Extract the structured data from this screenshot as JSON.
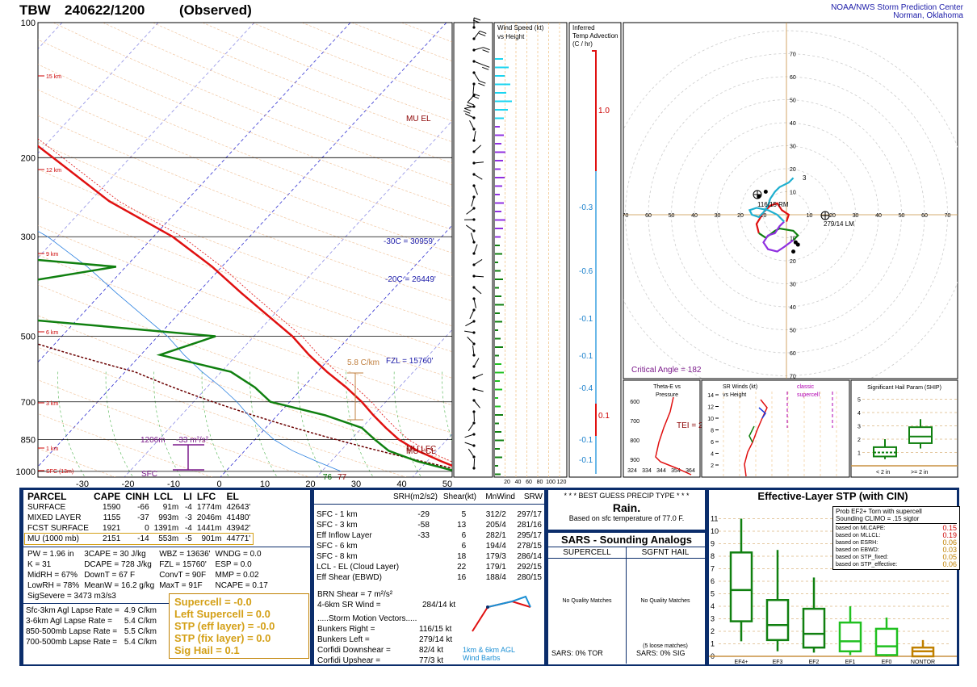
{
  "header": {
    "station": "TBW",
    "datetime": "240622/1200",
    "mode": "(Observed)",
    "org1": "NOAA/NWS Storm Prediction Center",
    "org2": "Norman, Oklahoma"
  },
  "skewt": {
    "pressure_labels": [
      "100",
      "200",
      "300",
      "500",
      "700",
      "850",
      "1000"
    ],
    "temp_labels": [
      "-30",
      "-20",
      "-10",
      "0",
      "10",
      "20",
      "30",
      "40",
      "50"
    ],
    "height_labels": [
      "15 km",
      "12 km",
      "9 km",
      "6 km",
      "3 km",
      "1 km",
      "SFC (13m)"
    ],
    "annotations": {
      "mu_el": "MU EL",
      "m30": "-30C = 30959'",
      "m20": "-20C = 26449'",
      "fzl": "FZL = 15760'",
      "lapse": "5.8 C/km",
      "mulfc": "MU LFC",
      "mulcl": "MU LCL",
      "sfc_t": "77",
      "sfc_td": "76",
      "cin_h": "1206m",
      "cin_v": "-33 m²/s²",
      "sfc": "SFC"
    }
  },
  "wind_profile": {
    "title1": "Wind Speed (kt)",
    "title2": "vs Height",
    "ticks": [
      "20",
      "40",
      "60",
      "80",
      "100",
      "120"
    ]
  },
  "temp_adv": {
    "title1": "Inferred",
    "title2": "Temp Advection",
    "title3": "(C / hr)",
    "values": [
      "1.0",
      "-0.3",
      "-0.6",
      "-0.1",
      "-0.1",
      "-0.4",
      "0.1",
      "-0.1",
      "-0.1"
    ]
  },
  "hodograph": {
    "rings": [
      "10",
      "20",
      "30",
      "40",
      "50",
      "60",
      "70"
    ],
    "rm": "116/15 RM",
    "lm": "279/14 LM",
    "critical": "Critical Angle = 182",
    "pts": [
      "3"
    ]
  },
  "theta": {
    "title1": "Theta-E vs",
    "title2": "Pressure",
    "tei": "TEI = 28",
    "plabels": [
      "600",
      "700",
      "800",
      "900"
    ],
    "tlabels": [
      "324",
      "334",
      "344",
      "354",
      "364"
    ]
  },
  "srwinds": {
    "title1": "SR Winds (kt)",
    "title2": "vs Height",
    "classic1": "classic",
    "classic2": "supercell",
    "hlabels": [
      "14",
      "12",
      "10",
      "8",
      "6",
      "4",
      "2"
    ]
  },
  "ship": {
    "title": "Significant Hail Param (SHIP)",
    "ticks": [
      "1",
      "2",
      "3",
      "4",
      "5"
    ],
    "lt": "< 2 in",
    "ge": ">= 2 in"
  },
  "params": {
    "header": [
      "PARCEL",
      "CAPE",
      "CINH",
      "LCL",
      "LI",
      "LFC",
      "EL"
    ],
    "rows": [
      [
        "SURFACE",
        "1590",
        "-66",
        "91m",
        "-4",
        "1774m",
        "42643'"
      ],
      [
        "MIXED LAYER",
        "1155",
        "-37",
        "993m",
        "-3",
        "2046m",
        "41480'"
      ],
      [
        "FCST SURFACE",
        "1921",
        "0",
        "1391m",
        "-4",
        "1441m",
        "43942'"
      ],
      [
        "MU    (1000 mb)",
        "2151",
        "-14",
        "553m",
        "-5",
        "901m",
        "44771'"
      ]
    ],
    "misc": [
      [
        "PW = 1.96 in",
        "3CAPE = 30 J/kg",
        "WBZ = 13636'",
        "WNDG = 0.0"
      ],
      [
        "K = 31",
        "DCAPE = 728 J/kg",
        "FZL = 15760'",
        "ESP = 0.0"
      ],
      [
        "MidRH = 67%",
        "DownT = 67 F",
        "ConvT = 90F",
        "MMP = 0.02"
      ],
      [
        "LowRH = 78%",
        "MeanW = 16.2 g/kg",
        "MaxT = 91F",
        "NCAPE = 0.17"
      ]
    ],
    "sigsevere": "SigSevere = 3473 m3/s3",
    "lapse": [
      [
        "Sfc-3km Agl Lapse Rate =",
        "4.9 C/km"
      ],
      [
        "3-6km Agl Lapse Rate =",
        "5.4 C/km"
      ],
      [
        "850-500mb Lapse Rate =",
        "5.5 C/km"
      ],
      [
        "700-500mb Lapse Rate =",
        "5.4 C/km"
      ]
    ],
    "composite": [
      "Supercell = -0.0",
      "Left Supercell = 0.0",
      "STP (eff layer) = -0.0",
      "STP (fix layer) = 0.0",
      "Sig Hail = 0.1"
    ]
  },
  "kinematics": {
    "header": [
      "SRH(m2/s2)",
      "Shear(kt)",
      "MnWind",
      "SRW"
    ],
    "rows": [
      [
        "SFC - 1 km",
        "-29",
        "5",
        "312/2",
        "297/17"
      ],
      [
        "SFC - 3 km",
        "-58",
        "13",
        "205/4",
        "281/16"
      ],
      [
        "Eff Inflow Layer",
        "-33",
        "6",
        "282/1",
        "295/17"
      ],
      [
        "",
        "",
        "",
        "",
        ""
      ],
      [
        "SFC - 6 km",
        "",
        "6",
        "194/4",
        "278/15"
      ],
      [
        "SFC - 8 km",
        "",
        "18",
        "179/3",
        "286/14"
      ],
      [
        "LCL - EL (Cloud Layer)",
        "",
        "22",
        "179/1",
        "292/15"
      ],
      [
        "Eff Shear (EBWD)",
        "",
        "16",
        "188/4",
        "280/15"
      ]
    ],
    "brn": "BRN Shear =  7 m²/s²",
    "srwind": "4-6km SR Wind =",
    "srwind_val": "284/14 kt",
    "storm_title": ".....Storm Motion Vectors.....",
    "storm": [
      [
        "Bunkers Right =",
        "116/15 kt"
      ],
      [
        "Bunkers Left =",
        "279/14 kt"
      ],
      [
        "",
        ""
      ],
      [
        "Corfidi Downshear =",
        "82/4 kt"
      ],
      [
        "Corfidi Upshear =",
        "77/3 kt"
      ]
    ],
    "legend1": "1km & 6km AGL",
    "legend2": "Wind Barbs"
  },
  "precip": {
    "title": "* * * BEST GUESS PRECIP TYPE * * *",
    "type": "Rain.",
    "basis": "Based on sfc temperature of 77.0 F."
  },
  "sars": {
    "title": "SARS - Sounding Analogs",
    "col1": "SUPERCELL",
    "col2": "SGFNT HAIL",
    "nomatch1": "No Quality Matches",
    "nomatch2": "No Quality Matches",
    "loose": "(5 loose matches)",
    "tor": "SARS:  0% TOR",
    "sig": "SARS:  0% SIG"
  },
  "stp": {
    "title": "Effective-Layer STP (with CIN)",
    "prob_title1": "Prob EF2+ Torn with supercell",
    "prob_title2": "Sounding CLIMO = .15 sigtor",
    "probs": [
      [
        "based on MLCAPE:",
        "0.15"
      ],
      [
        "based on MLLCL:",
        "0.19"
      ],
      [
        "based on ESRH:",
        "0.06"
      ],
      [
        "based on EBWD:",
        "0.03"
      ],
      [
        "",
        ""
      ],
      [
        "based on STP_fixed:",
        "0.05"
      ],
      [
        "based on STP_effective:",
        "0.06"
      ]
    ],
    "yticks": [
      "0",
      "1",
      "2",
      "3",
      "4",
      "5",
      "6",
      "7",
      "8",
      "9",
      "10",
      "11"
    ],
    "cats": [
      "EF4+",
      "EF3",
      "EF2",
      "EF1",
      "EF0",
      "NONTOR"
    ]
  },
  "chart_data": {
    "type": "skew-t sounding",
    "temperature": [
      [
        1000,
        25
      ],
      [
        950,
        21.5
      ],
      [
        900,
        18
      ],
      [
        850,
        15
      ],
      [
        800,
        12.5
      ],
      [
        750,
        10
      ],
      [
        700,
        7.5
      ],
      [
        650,
        4.5
      ],
      [
        600,
        1
      ],
      [
        550,
        -2.5
      ],
      [
        500,
        -6
      ],
      [
        450,
        -10.5
      ],
      [
        400,
        -15.5
      ],
      [
        350,
        -21
      ],
      [
        300,
        -28
      ],
      [
        250,
        -38
      ],
      [
        200,
        -48
      ],
      [
        150,
        -61
      ],
      [
        100,
        -75
      ]
    ],
    "dewpoint": [
      [
        1000,
        24
      ],
      [
        950,
        19
      ],
      [
        900,
        15
      ],
      [
        850,
        12.5
      ],
      [
        800,
        10
      ],
      [
        750,
        5
      ],
      [
        700,
        -2
      ],
      [
        650,
        -5
      ],
      [
        600,
        -9
      ],
      [
        550,
        -18
      ],
      [
        500,
        -14
      ],
      [
        450,
        -40
      ],
      [
        400,
        -45
      ],
      [
        350,
        -31
      ],
      [
        300,
        -70
      ],
      [
        250,
        -58
      ],
      [
        200,
        -66
      ],
      [
        150,
        -71
      ],
      [
        100,
        -77
      ]
    ],
    "stp_boxes": [
      {
        "cat": "EF4+",
        "min": 1.2,
        "q1": 2.8,
        "med": 5.3,
        "q3": 8.3,
        "max": 11.0
      },
      {
        "cat": "EF3",
        "min": 0.4,
        "q1": 1.3,
        "med": 2.5,
        "q3": 4.5,
        "max": 8.5
      },
      {
        "cat": "EF2",
        "min": 0.3,
        "q1": 0.7,
        "med": 1.8,
        "q3": 3.8,
        "max": 6.3
      },
      {
        "cat": "EF1",
        "min": 0.1,
        "q1": 0.4,
        "med": 1.2,
        "q3": 2.7,
        "max": 4.0
      },
      {
        "cat": "EF0",
        "min": 0.0,
        "q1": 0.1,
        "med": 0.8,
        "q3": 2.2,
        "max": 3.1
      },
      {
        "cat": "NONTOR",
        "min": 0.0,
        "q1": 0.0,
        "med": 0.4,
        "q3": 0.7,
        "max": 1.3
      }
    ],
    "hodograph": [
      [
        0,
        -3
      ],
      [
        1,
        0
      ],
      [
        -2,
        2
      ],
      [
        -4,
        5
      ],
      [
        -7,
        4
      ],
      [
        -10,
        1
      ],
      [
        -13,
        -4
      ],
      [
        -12,
        -8
      ],
      [
        -9,
        -10
      ],
      [
        -5,
        -7
      ],
      [
        -3,
        -6
      ],
      [
        3,
        -7
      ],
      [
        5,
        -9
      ],
      [
        3,
        -11
      ],
      [
        -1,
        -14
      ],
      [
        -4,
        -16
      ],
      [
        -8,
        -15
      ],
      [
        -10,
        -12
      ],
      [
        -8,
        -9
      ],
      [
        -5,
        -8
      ],
      [
        -3,
        -5
      ],
      [
        -1,
        -3
      ],
      [
        -4,
        0
      ],
      [
        -8,
        2
      ],
      [
        -13,
        3
      ],
      [
        -16,
        2
      ],
      [
        -15,
        0
      ],
      [
        -12,
        -1
      ],
      [
        -10,
        1
      ],
      [
        -8,
        4
      ],
      [
        -7,
        7
      ],
      [
        -5,
        10
      ],
      [
        -3,
        12
      ],
      [
        -1,
        13
      ],
      [
        1,
        14
      ],
      [
        3,
        16
      ]
    ],
    "ship_lt2": {
      "q1": 0.7,
      "med": 1.0,
      "q3": 1.4,
      "min": 0.5,
      "max": 2.0
    },
    "ship_ge2": {
      "q1": 1.7,
      "med": 2.2,
      "q3": 2.9,
      "min": 1.3,
      "max": 3.5
    }
  }
}
